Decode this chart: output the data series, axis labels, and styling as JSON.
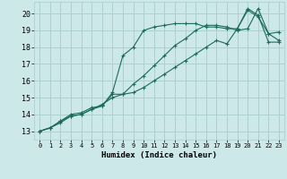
{
  "xlabel": "Humidex (Indice chaleur)",
  "bg_color": "#cce8e8",
  "grid_color": "#aacccc",
  "line_color": "#1a6b5a",
  "xlim": [
    -0.5,
    23.5
  ],
  "ylim": [
    12.5,
    20.7
  ],
  "xticks": [
    0,
    1,
    2,
    3,
    4,
    5,
    6,
    7,
    8,
    9,
    10,
    11,
    12,
    13,
    14,
    15,
    16,
    17,
    18,
    19,
    20,
    21,
    22,
    23
  ],
  "yticks": [
    13,
    14,
    15,
    16,
    17,
    18,
    19,
    20
  ],
  "line1_x": [
    0,
    1,
    2,
    3,
    4,
    5,
    6,
    7,
    8,
    9,
    10,
    11,
    12,
    13,
    14,
    15,
    16,
    17,
    18,
    19,
    20,
    21,
    22,
    23
  ],
  "line1_y": [
    13.0,
    13.2,
    13.6,
    13.9,
    14.0,
    14.3,
    14.5,
    15.2,
    15.2,
    15.3,
    15.6,
    16.0,
    16.4,
    16.8,
    17.2,
    17.6,
    18.0,
    18.4,
    18.2,
    19.1,
    20.2,
    19.8,
    18.8,
    18.9
  ],
  "line2_x": [
    0,
    1,
    2,
    3,
    4,
    5,
    6,
    7,
    8,
    9,
    10,
    11,
    12,
    13,
    14,
    15,
    16,
    17,
    18,
    19,
    20,
    21,
    22,
    23
  ],
  "line2_y": [
    13.0,
    13.2,
    13.5,
    13.9,
    14.0,
    14.3,
    14.6,
    15.0,
    15.2,
    15.8,
    16.3,
    16.9,
    17.5,
    18.1,
    18.5,
    19.0,
    19.3,
    19.3,
    19.2,
    19.0,
    19.1,
    20.3,
    18.8,
    18.4
  ],
  "line3_x": [
    0,
    1,
    2,
    3,
    4,
    5,
    6,
    7,
    8,
    9,
    10,
    11,
    12,
    13,
    14,
    15,
    16,
    17,
    18,
    19,
    20,
    21,
    22,
    23
  ],
  "line3_y": [
    13.0,
    13.2,
    13.6,
    14.0,
    14.1,
    14.4,
    14.5,
    15.3,
    17.5,
    18.0,
    19.0,
    19.2,
    19.3,
    19.4,
    19.4,
    19.4,
    19.2,
    19.2,
    19.1,
    19.1,
    20.3,
    19.9,
    18.3,
    18.3
  ]
}
